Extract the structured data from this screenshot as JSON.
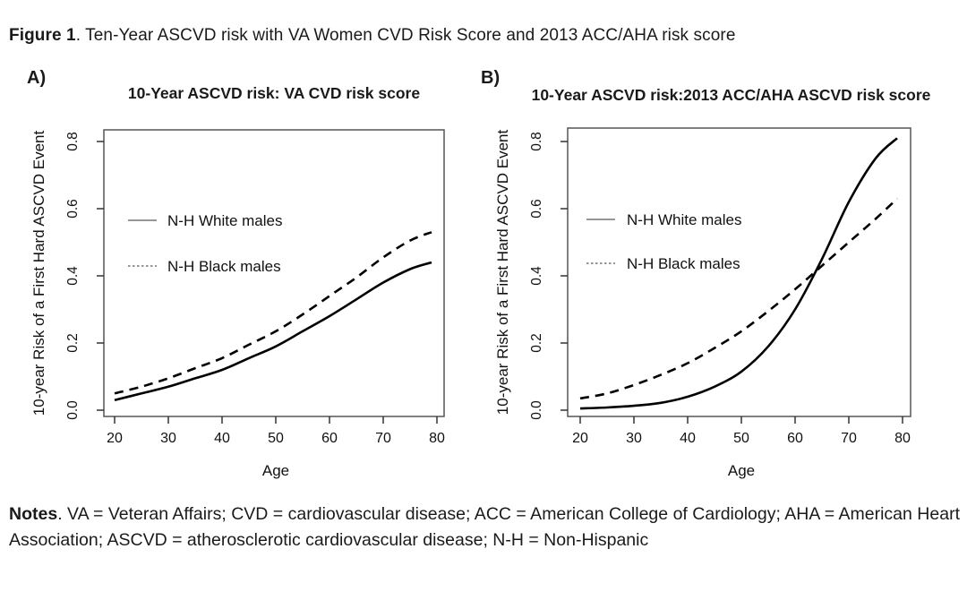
{
  "figure_title": {
    "bold": "Figure 1",
    "rest": ". Ten-Year ASCVD risk with VA Women CVD Risk Score and 2013 ACC/AHA risk score"
  },
  "notes": {
    "bold": "Notes",
    "rest": ". VA = Veteran Affairs; CVD = cardiovascular disease; ACC = American College of Cardiology; AHA = American Heart Association; ASCVD = atherosclerotic cardiovascular disease; N-H = Non-Hispanic"
  },
  "colors": {
    "curve": "#000000",
    "box": "#555555",
    "tick": "#333333",
    "text": "#111111",
    "legend_sample": "#888888"
  },
  "chart_data": [
    {
      "type": "line",
      "panel_label": "A)",
      "title": "10-Year ASCVD risk: VA CVD risk score",
      "xlabel": "Age",
      "ylabel": "10-year Risk of a First Hard ASCVD Event",
      "xticks": [
        20,
        30,
        40,
        50,
        60,
        70,
        80
      ],
      "ytick_labels": [
        "0.0",
        "0.2",
        "0.4",
        "0.6",
        "0.8"
      ],
      "xlim": [
        18,
        82
      ],
      "ylim": [
        0,
        0.84
      ],
      "grid": false,
      "legend_position": "inside-left-middle",
      "x": [
        20,
        25,
        30,
        35,
        40,
        45,
        50,
        55,
        60,
        65,
        70,
        75,
        79
      ],
      "series": [
        {
          "name": "N-H White males",
          "style": "solid",
          "values": [
            0.03,
            0.05,
            0.07,
            0.095,
            0.12,
            0.155,
            0.19,
            0.235,
            0.28,
            0.33,
            0.38,
            0.42,
            0.44
          ]
        },
        {
          "name": "N-H Black males",
          "style": "dashed",
          "values": [
            0.05,
            0.07,
            0.095,
            0.125,
            0.155,
            0.195,
            0.235,
            0.285,
            0.34,
            0.395,
            0.455,
            0.505,
            0.53
          ]
        }
      ]
    },
    {
      "type": "line",
      "panel_label": "B)",
      "title": "10-Year ASCVD risk:2013 ACC/AHA ASCVD risk score",
      "xlabel": "Age",
      "ylabel": "10-year Risk of a First Hard ASCVD Event",
      "xticks": [
        20,
        30,
        40,
        50,
        60,
        70,
        80
      ],
      "ytick_labels": [
        "0.0",
        "0.2",
        "0.4",
        "0.6",
        "0.8"
      ],
      "xlim": [
        18,
        82
      ],
      "ylim": [
        0,
        0.84
      ],
      "grid": false,
      "legend_position": "inside-left-middle",
      "x": [
        20,
        25,
        30,
        35,
        40,
        45,
        50,
        55,
        60,
        65,
        70,
        75,
        79
      ],
      "series": [
        {
          "name": "N-H White males",
          "style": "solid",
          "values": [
            0.005,
            0.008,
            0.013,
            0.022,
            0.04,
            0.07,
            0.115,
            0.19,
            0.3,
            0.45,
            0.62,
            0.75,
            0.81
          ]
        },
        {
          "name": "N-H Black males",
          "style": "dashed",
          "values": [
            0.035,
            0.05,
            0.075,
            0.105,
            0.14,
            0.185,
            0.235,
            0.295,
            0.36,
            0.43,
            0.5,
            0.57,
            0.63
          ]
        }
      ]
    }
  ]
}
